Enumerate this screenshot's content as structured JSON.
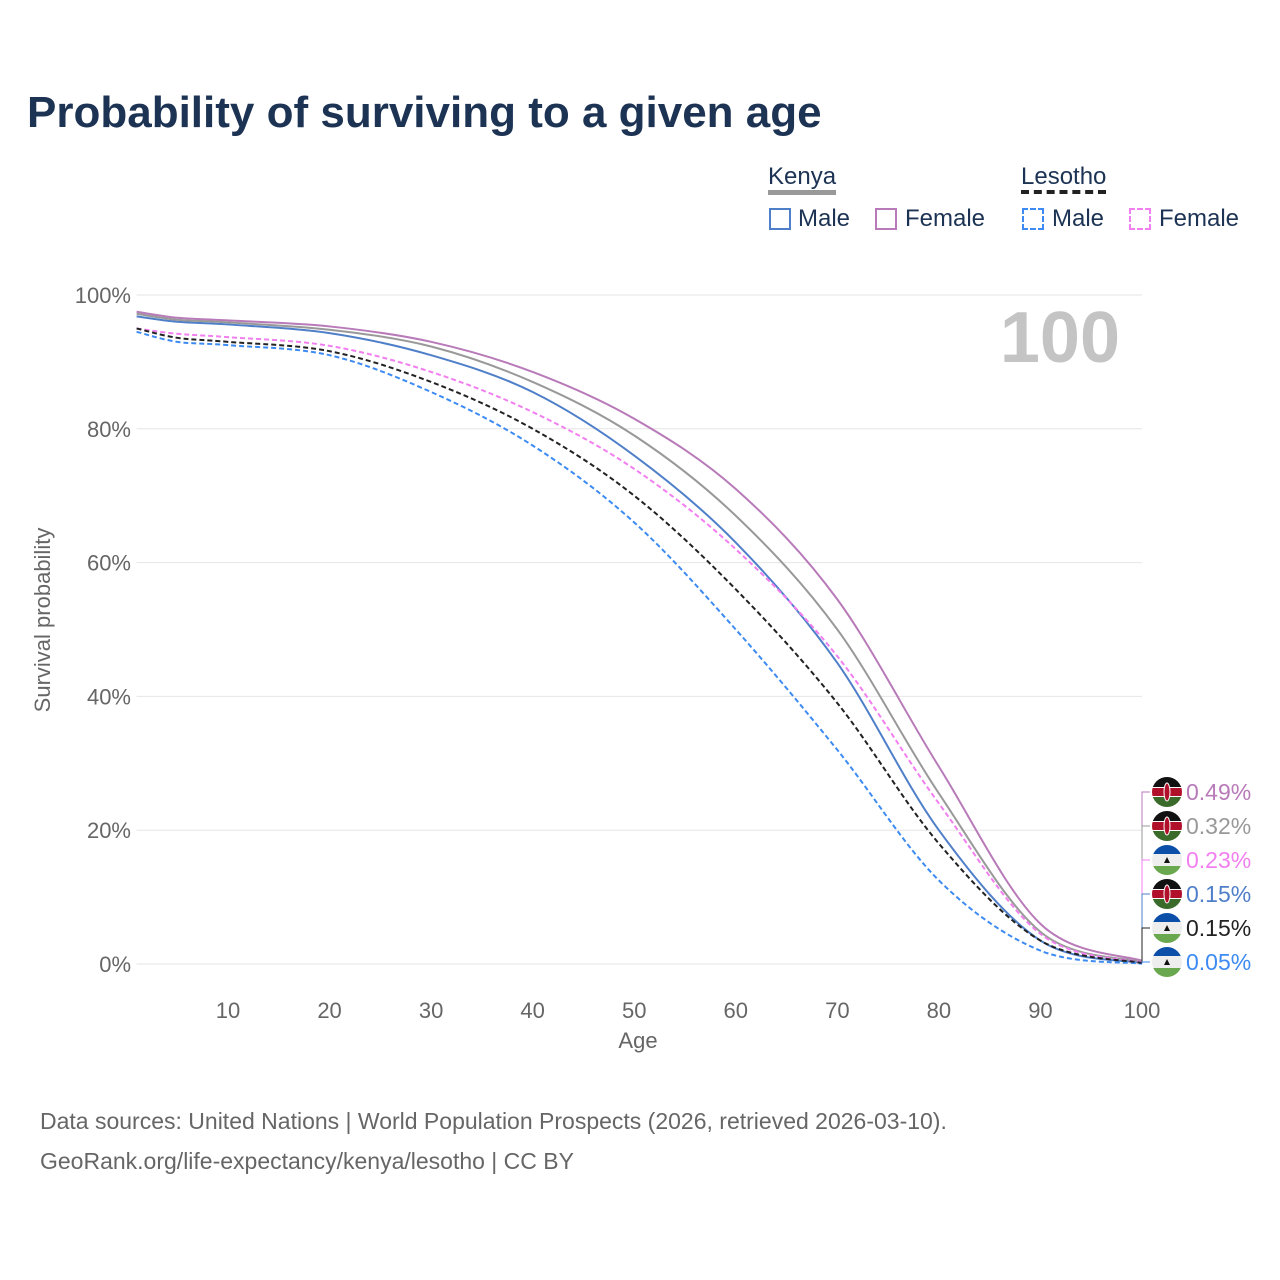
{
  "title": "Probability of surviving to a given age",
  "legend": {
    "groups": [
      {
        "label": "Kenya",
        "style": "solid",
        "color": "#999999"
      },
      {
        "label": "Lesotho",
        "style": "dashed",
        "color": "#222222"
      }
    ],
    "items": [
      "Male",
      "Female",
      "Male",
      "Female"
    ]
  },
  "year_watermark": "100",
  "footer": {
    "line1": "Data sources: United Nations | World Population Prospects (2026, retrieved 2026-03-10).",
    "line2": "GeoRank.org/life-expectancy/kenya/lesotho | CC BY"
  },
  "chart_data": {
    "type": "line",
    "title": "Probability of surviving to a given age",
    "xlabel": "Age",
    "ylabel": "Survival probability",
    "xlim": [
      1,
      100
    ],
    "ylim": [
      0,
      100
    ],
    "xticks": [
      10,
      20,
      30,
      40,
      50,
      60,
      70,
      80,
      90,
      100
    ],
    "yticks": [
      "0%",
      "20%",
      "40%",
      "60%",
      "80%",
      "100%"
    ],
    "grid": true,
    "x": [
      1,
      5,
      10,
      20,
      30,
      40,
      50,
      60,
      70,
      80,
      90,
      100
    ],
    "series": [
      {
        "name": "Kenya Male",
        "country": "Kenya",
        "color": "#4f7fc9",
        "dash": false,
        "values": [
          96.8,
          96.0,
          95.6,
          94.3,
          91.0,
          85.5,
          76.0,
          63.0,
          45.0,
          20.0,
          3.5,
          0.15
        ],
        "end_label": "0.15%"
      },
      {
        "name": "Kenya Female",
        "country": "Kenya",
        "color": "#b87ab8",
        "dash": false,
        "values": [
          97.5,
          96.6,
          96.2,
          95.3,
          93.0,
          88.5,
          81.5,
          71.0,
          54.5,
          29.5,
          6.0,
          0.49
        ],
        "end_label": "0.49%"
      },
      {
        "name": "Kenya",
        "country": "Kenya",
        "color": "#999999",
        "dash": false,
        "values": [
          97.2,
          96.3,
          95.9,
          94.8,
          92.3,
          87.0,
          79.0,
          67.0,
          50.0,
          25.5,
          4.8,
          0.32
        ],
        "end_label": "0.32%"
      },
      {
        "name": "Lesotho Male",
        "country": "Lesotho",
        "color": "#3d8bf2",
        "dash": true,
        "values": [
          94.5,
          93.0,
          92.5,
          91.0,
          85.5,
          77.5,
          66.0,
          50.0,
          32.0,
          12.5,
          2.0,
          0.05
        ],
        "end_label": "0.05%"
      },
      {
        "name": "Lesotho Female",
        "country": "Lesotho",
        "color": "#f27ff0",
        "dash": true,
        "values": [
          95.0,
          94.2,
          93.7,
          92.4,
          88.5,
          82.5,
          74.0,
          62.0,
          46.0,
          24.0,
          4.5,
          0.23
        ],
        "end_label": "0.23%"
      },
      {
        "name": "Lesotho",
        "country": "Lesotho",
        "color": "#222222",
        "dash": true,
        "values": [
          95.0,
          93.6,
          93.0,
          91.6,
          87.0,
          80.0,
          70.0,
          56.0,
          39.0,
          18.0,
          3.5,
          0.15
        ],
        "end_label": "0.15%"
      }
    ],
    "end_label_order": [
      1,
      2,
      4,
      0,
      5,
      3
    ]
  }
}
